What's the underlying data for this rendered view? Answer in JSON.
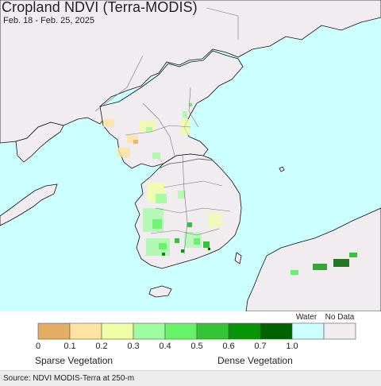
{
  "title": "Cropland NDVI (Terra-MODIS)",
  "date_range": "Feb. 18 - Feb. 25, 2025",
  "colors": {
    "water": "#ccffff",
    "land_no_data": "#f0ecf0",
    "border": "#666666",
    "coast": "#111111"
  },
  "legend": {
    "special_labels": {
      "water": "Water",
      "no_data": "No Data"
    },
    "classes": [
      {
        "color": "#e3ad66"
      },
      {
        "color": "#fce3a0"
      },
      {
        "color": "#eeffa6"
      },
      {
        "color": "#9efc9f"
      },
      {
        "color": "#67f367"
      },
      {
        "color": "#35c435"
      },
      {
        "color": "#079407"
      },
      {
        "color": "#006300"
      },
      {
        "color": "#ccffff"
      },
      {
        "color": "#f0ecf0"
      }
    ],
    "tick_labels": [
      "0",
      "0.1",
      "0.2",
      "0.3",
      "0.4",
      "0.5",
      "0.6",
      "0.7",
      "1.0"
    ],
    "left_caption": "Sparse Vegetation",
    "right_caption": "Dense Vegetation"
  },
  "source": "Source: NDVI MODIS-Terra at 250-m"
}
